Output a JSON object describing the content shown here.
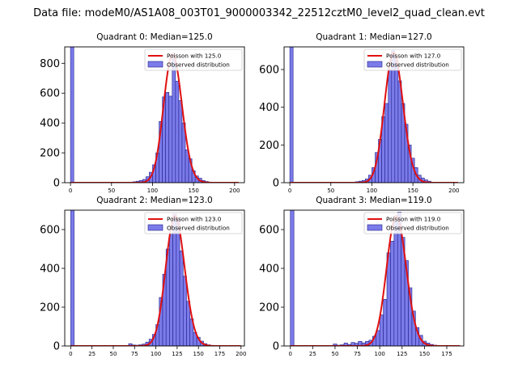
{
  "figure": {
    "suptitle": "Data file: modeM0/AS1A08_003T01_9000003342_22512cztM0_level2_quad_clean.evt",
    "colors": {
      "bar_fill": "#7b7bea",
      "bar_edge": "#20208a",
      "curve": "#e01010",
      "axis": "#000000"
    }
  },
  "chart_data": [
    {
      "type": "bar",
      "title": "Quadrant 0: Median=125.0",
      "median": 125.0,
      "xlim": [
        -7,
        212
      ],
      "ylim": [
        0,
        910
      ],
      "xticks": [
        0,
        50,
        100,
        150,
        200
      ],
      "yticks": [
        0,
        200,
        400,
        600,
        800
      ],
      "legend": {
        "location": "top-right",
        "entries": [
          "Poisson with 125.0",
          "Observed distribution"
        ]
      },
      "bin_width": 4,
      "zero_bin": {
        "x": 0,
        "height": 910
      },
      "bins_x": [
        68,
        72,
        76,
        80,
        84,
        88,
        92,
        96,
        100,
        104,
        108,
        112,
        116,
        120,
        124,
        128,
        132,
        136,
        140,
        144,
        148,
        152,
        156,
        160,
        164,
        168
      ],
      "bins_y": [
        2,
        3,
        6,
        10,
        15,
        22,
        40,
        70,
        120,
        200,
        410,
        575,
        605,
        580,
        830,
        680,
        550,
        400,
        220,
        160,
        80,
        45,
        30,
        15,
        8,
        3
      ],
      "curve": {
        "type": "poisson",
        "mean": 125.0,
        "peak": 860,
        "x_range": [
          0,
          205
        ]
      }
    },
    {
      "type": "bar",
      "title": "Quadrant 1: Median=127.0",
      "median": 127.0,
      "xlim": [
        -7,
        212
      ],
      "ylim": [
        0,
        720
      ],
      "xticks": [
        0,
        50,
        100,
        150,
        200
      ],
      "yticks": [
        0,
        200,
        400,
        600
      ],
      "legend": {
        "location": "top-right",
        "entries": [
          "Poisson with 127.0",
          "Observed distribution"
        ]
      },
      "bin_width": 4,
      "zero_bin": {
        "x": 0,
        "height": 720
      },
      "bins_x": [
        72,
        76,
        80,
        84,
        88,
        92,
        96,
        100,
        104,
        108,
        112,
        116,
        120,
        124,
        128,
        132,
        136,
        140,
        144,
        148,
        152,
        156,
        160,
        164,
        168,
        172
      ],
      "bins_y": [
        2,
        3,
        5,
        8,
        12,
        20,
        40,
        80,
        160,
        230,
        350,
        420,
        600,
        700,
        650,
        540,
        420,
        310,
        200,
        130,
        80,
        40,
        25,
        15,
        8,
        3
      ],
      "curve": {
        "type": "poisson",
        "mean": 127.0,
        "peak": 690,
        "x_range": [
          0,
          205
        ]
      }
    },
    {
      "type": "bar",
      "title": "Quadrant 2: Median=123.0",
      "median": 123.0,
      "xlim": [
        -7,
        204
      ],
      "ylim": [
        0,
        700
      ],
      "xticks": [
        0,
        25,
        50,
        75,
        100,
        125,
        150,
        175,
        200
      ],
      "yticks": [
        0,
        200,
        400,
        600
      ],
      "legend": {
        "location": "top-right",
        "entries": [
          "Poisson with 123.0",
          "Observed distribution"
        ]
      },
      "bin_width": 4,
      "zero_bin": {
        "x": 0,
        "height": 700
      },
      "bins_x": [
        68,
        72,
        76,
        80,
        84,
        88,
        92,
        96,
        100,
        104,
        108,
        112,
        116,
        120,
        124,
        128,
        132,
        136,
        140,
        144,
        148,
        152,
        156,
        160,
        164
      ],
      "bins_y": [
        12,
        5,
        4,
        6,
        10,
        20,
        35,
        60,
        110,
        250,
        370,
        500,
        580,
        680,
        660,
        490,
        360,
        230,
        140,
        70,
        45,
        25,
        12,
        6,
        3
      ],
      "curve": {
        "type": "poisson",
        "mean": 123.0,
        "peak": 670,
        "x_range": [
          0,
          200
        ]
      }
    },
    {
      "type": "bar",
      "title": "Quadrant 3: Median=119.0",
      "median": 119.0,
      "xlim": [
        -7,
        194
      ],
      "ylim": [
        0,
        700
      ],
      "xticks": [
        0,
        25,
        50,
        75,
        100,
        125,
        150,
        175
      ],
      "yticks": [
        0,
        200,
        400,
        600
      ],
      "legend": {
        "location": "top-right",
        "entries": [
          "Poisson with 119.0",
          "Observed distribution"
        ]
      },
      "bin_width": 4,
      "zero_bin": {
        "x": 0,
        "height": 700
      },
      "bins_x": [
        48,
        52,
        56,
        60,
        64,
        68,
        72,
        76,
        80,
        84,
        88,
        92,
        96,
        100,
        104,
        108,
        112,
        116,
        120,
        124,
        128,
        132,
        136,
        140,
        144,
        148,
        152,
        156,
        160,
        164
      ],
      "bins_y": [
        10,
        4,
        6,
        15,
        8,
        18,
        14,
        24,
        16,
        24,
        30,
        50,
        80,
        160,
        240,
        480,
        540,
        640,
        690,
        560,
        440,
        300,
        180,
        95,
        55,
        25,
        15,
        8,
        4,
        2
      ],
      "curve": {
        "type": "poisson",
        "mean": 119.0,
        "peak": 670,
        "x_range": [
          0,
          190
        ]
      }
    }
  ]
}
